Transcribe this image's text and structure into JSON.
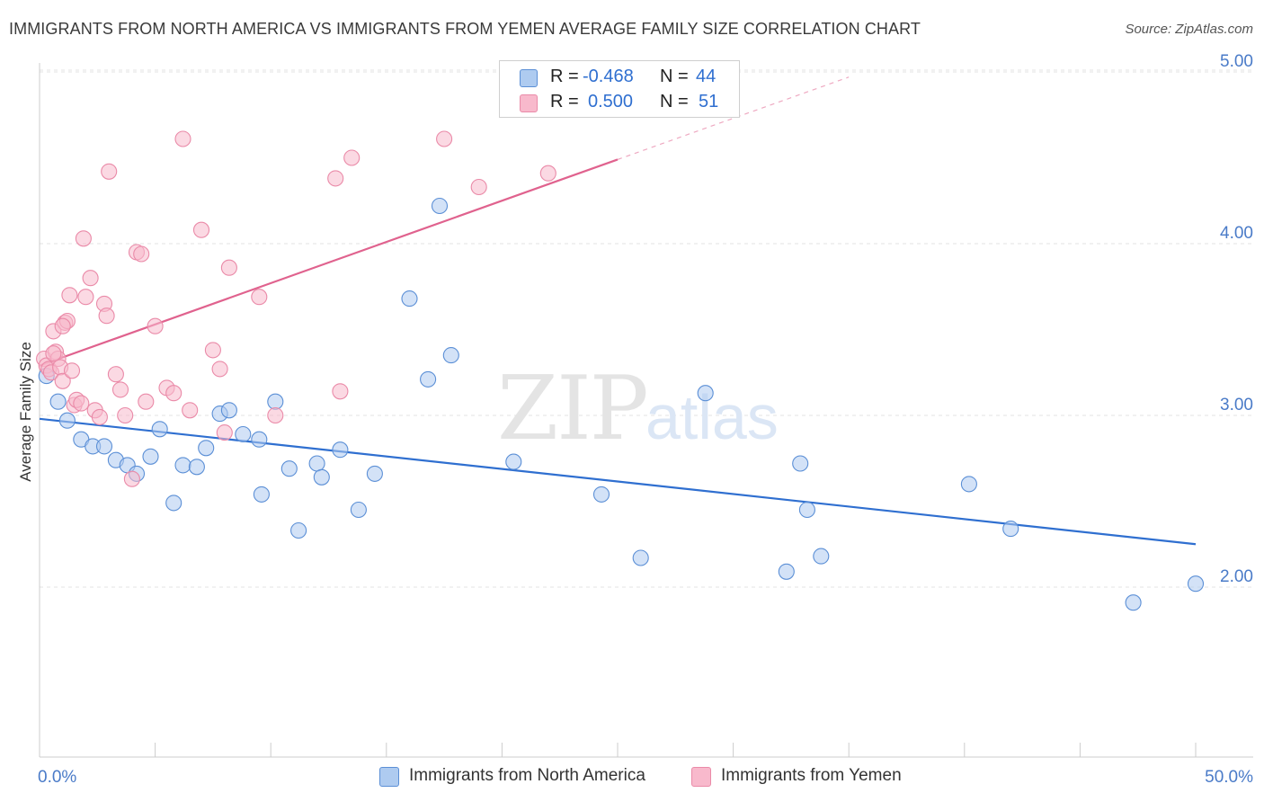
{
  "title": "IMMIGRANTS FROM NORTH AMERICA VS IMMIGRANTS FROM YEMEN AVERAGE FAMILY SIZE CORRELATION CHART",
  "source": "Source: ZipAtlas.com",
  "watermark": {
    "zip": "ZIP",
    "atlas": "atlas"
  },
  "legend": {
    "rows": [
      {
        "r_label": "R =",
        "r_value": "-0.468",
        "n_label": "N =",
        "n_value": "44",
        "color": "#aecbf0"
      },
      {
        "r_label": "R =",
        "r_value": "0.500",
        "n_label": "N =",
        "n_value": "51",
        "color": "#f8b9cc"
      }
    ]
  },
  "bottom_legend": [
    {
      "label": "Immigrants from North America",
      "color": "#aecbf0"
    },
    {
      "label": "Immigrants from Yemen",
      "color": "#f8b9cc"
    }
  ],
  "chart_data": {
    "type": "scatter",
    "title": "IMMIGRANTS FROM NORTH AMERICA VS IMMIGRANTS FROM YEMEN AVERAGE FAMILY SIZE CORRELATION CHART",
    "xlabel": "",
    "ylabel": "Average Family Size",
    "xlim": [
      0,
      50
    ],
    "ylim": [
      1.2,
      5.1
    ],
    "x_tick_labels": [
      "0.0%",
      "50.0%"
    ],
    "y_ticks": [
      2.0,
      3.0,
      4.0,
      5.0
    ],
    "y_tick_labels": [
      "2.00",
      "3.00",
      "4.00",
      "5.00"
    ],
    "grid": "horizontal dashed",
    "legend_placement": "top-center",
    "series": [
      {
        "name": "Immigrants from North America",
        "color": "#aecbf0",
        "stroke": "#5b8fd6",
        "line_color": "#2f6fd0",
        "trend": {
          "x0": 0.0,
          "y0": 2.98,
          "x1": 50.0,
          "y1": 2.25,
          "dashed_until": 50.0
        },
        "points": [
          [
            0.3,
            3.23
          ],
          [
            0.8,
            3.08
          ],
          [
            1.2,
            2.97
          ],
          [
            1.8,
            2.86
          ],
          [
            2.3,
            2.82
          ],
          [
            2.8,
            2.82
          ],
          [
            3.3,
            2.74
          ],
          [
            3.8,
            2.71
          ],
          [
            4.2,
            2.66
          ],
          [
            4.8,
            2.76
          ],
          [
            5.2,
            2.92
          ],
          [
            5.8,
            2.49
          ],
          [
            6.2,
            2.71
          ],
          [
            6.8,
            2.7
          ],
          [
            7.2,
            2.81
          ],
          [
            7.8,
            3.01
          ],
          [
            8.2,
            3.03
          ],
          [
            8.8,
            2.89
          ],
          [
            9.5,
            2.86
          ],
          [
            9.6,
            2.54
          ],
          [
            10.2,
            3.08
          ],
          [
            10.8,
            2.69
          ],
          [
            11.2,
            2.33
          ],
          [
            12.0,
            2.72
          ],
          [
            12.2,
            2.64
          ],
          [
            13.0,
            2.8
          ],
          [
            13.8,
            2.45
          ],
          [
            14.5,
            2.66
          ],
          [
            16.0,
            3.68
          ],
          [
            16.8,
            3.21
          ],
          [
            17.3,
            4.22
          ],
          [
            17.8,
            3.35
          ],
          [
            20.5,
            2.73
          ],
          [
            24.3,
            2.54
          ],
          [
            26.0,
            2.17
          ],
          [
            28.8,
            3.13
          ],
          [
            32.3,
            2.09
          ],
          [
            32.9,
            2.72
          ],
          [
            33.2,
            2.45
          ],
          [
            33.8,
            2.18
          ],
          [
            40.2,
            2.6
          ],
          [
            42.0,
            2.34
          ],
          [
            47.3,
            1.91
          ],
          [
            50.0,
            2.02
          ]
        ]
      },
      {
        "name": "Immigrants from Yemen",
        "color": "#f8b9cc",
        "stroke": "#ea8aa8",
        "line_color": "#e0628e",
        "trend": {
          "x0": 0.0,
          "y0": 3.29,
          "x1": 25.0,
          "y1": 4.49,
          "dashed_until": 35.0
        },
        "points": [
          [
            0.2,
            3.33
          ],
          [
            0.3,
            3.29
          ],
          [
            0.4,
            3.27
          ],
          [
            0.5,
            3.25
          ],
          [
            0.6,
            3.49
          ],
          [
            0.7,
            3.37
          ],
          [
            0.8,
            3.33
          ],
          [
            0.9,
            3.28
          ],
          [
            1.0,
            3.2
          ],
          [
            1.1,
            3.54
          ],
          [
            1.2,
            3.55
          ],
          [
            1.3,
            3.7
          ],
          [
            1.4,
            3.26
          ],
          [
            1.5,
            3.06
          ],
          [
            1.6,
            3.09
          ],
          [
            1.8,
            3.07
          ],
          [
            1.9,
            4.03
          ],
          [
            2.0,
            3.69
          ],
          [
            2.2,
            3.8
          ],
          [
            2.4,
            3.03
          ],
          [
            2.6,
            2.99
          ],
          [
            2.8,
            3.65
          ],
          [
            2.9,
            3.58
          ],
          [
            3.0,
            4.42
          ],
          [
            3.3,
            3.24
          ],
          [
            3.5,
            3.15
          ],
          [
            3.7,
            3.0
          ],
          [
            4.0,
            2.63
          ],
          [
            4.2,
            3.95
          ],
          [
            4.4,
            3.94
          ],
          [
            4.6,
            3.08
          ],
          [
            5.0,
            3.52
          ],
          [
            5.5,
            3.16
          ],
          [
            5.8,
            3.13
          ],
          [
            6.2,
            4.61
          ],
          [
            6.5,
            3.03
          ],
          [
            7.0,
            4.08
          ],
          [
            7.5,
            3.38
          ],
          [
            7.8,
            3.27
          ],
          [
            8.0,
            2.9
          ],
          [
            8.2,
            3.86
          ],
          [
            9.5,
            3.69
          ],
          [
            10.2,
            3.0
          ],
          [
            12.8,
            4.38
          ],
          [
            13.0,
            3.14
          ],
          [
            13.5,
            4.5
          ],
          [
            17.5,
            4.61
          ],
          [
            19.0,
            4.33
          ],
          [
            22.0,
            4.41
          ],
          [
            0.6,
            3.36
          ],
          [
            1.0,
            3.52
          ]
        ]
      }
    ]
  }
}
